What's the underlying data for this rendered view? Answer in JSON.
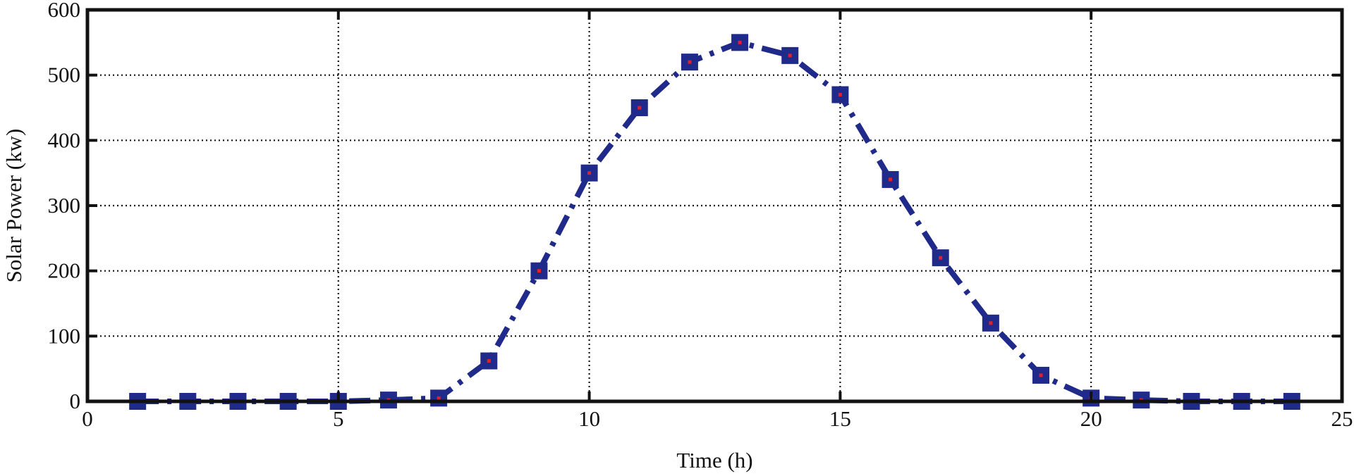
{
  "chart_data": {
    "type": "line",
    "title": "",
    "xlabel": "Time (h)",
    "ylabel": "Solar Power (kw)",
    "xlim": [
      0,
      25
    ],
    "ylim": [
      0,
      600
    ],
    "xticks": [
      0,
      5,
      10,
      15,
      20,
      25
    ],
    "yticks": [
      0,
      100,
      200,
      300,
      400,
      500,
      600
    ],
    "grid": true,
    "grid_style": "dotted",
    "line_style": "dash-dot",
    "marker": "square",
    "series": [
      {
        "x": [
          1,
          2,
          3,
          4,
          5,
          6,
          7,
          8,
          9,
          10,
          11,
          12,
          13,
          14,
          15,
          16,
          17,
          18,
          19,
          20,
          21,
          22,
          23,
          24
        ],
        "y": [
          0,
          0,
          0,
          0,
          0,
          2,
          5,
          62,
          200,
          350,
          450,
          520,
          550,
          530,
          470,
          340,
          220,
          120,
          40,
          5,
          2,
          0,
          0,
          0
        ],
        "color": "#1f2a8a",
        "marker_color": "#1f2a8a",
        "marker_center_color": "#e0202a"
      }
    ]
  }
}
